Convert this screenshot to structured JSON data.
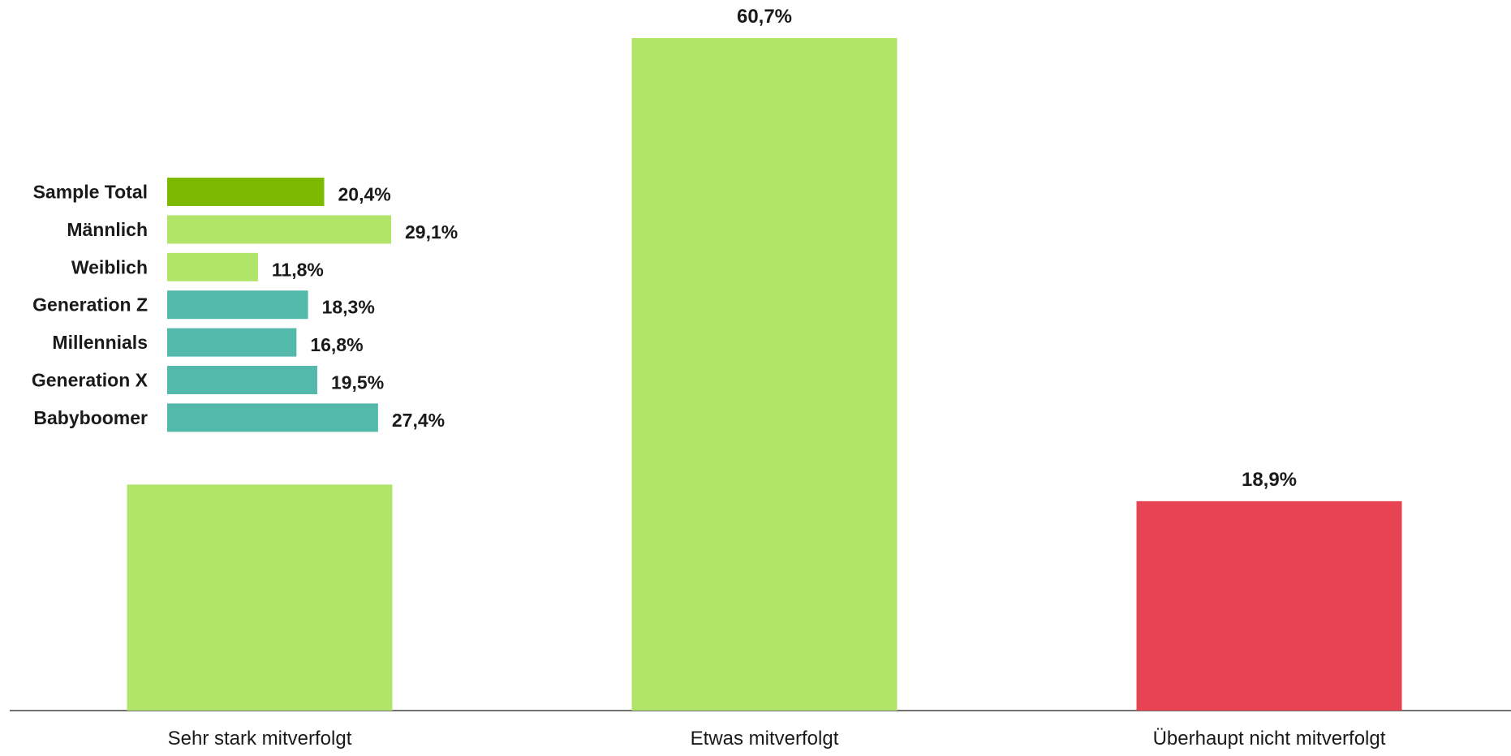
{
  "chart_data": [
    {
      "type": "bar",
      "categories": [
        "Sehr stark mitverfolgt",
        "Etwas mitverfolgt",
        "Überhaupt nicht mitverfolgt"
      ],
      "values": [
        20.4,
        60.7,
        18.9
      ],
      "value_labels": [
        "",
        "60,7%",
        "18,9%"
      ],
      "colors": [
        "#b1e56a",
        "#b1e56a",
        "#e84353"
      ],
      "ylim": [
        0,
        62
      ],
      "grid": false,
      "legend": "none"
    },
    {
      "type": "bar",
      "orientation": "horizontal",
      "categories": [
        "Sample Total",
        "Männlich",
        "Weiblich",
        "Generation Z",
        "Millennials",
        "Generation X",
        "Babyboomer"
      ],
      "values": [
        20.4,
        29.1,
        11.8,
        18.3,
        16.8,
        19.5,
        27.4
      ],
      "value_labels": [
        "20,4%",
        "29,1%",
        "11,8%",
        "18,3%",
        "16,8%",
        "19,5%",
        "27,4%"
      ],
      "colors": [
        "#7db900",
        "#b1e56a",
        "#b1e56a",
        "#52b9ab",
        "#52b9ab",
        "#52b9ab",
        "#52b9ab"
      ],
      "grid": false,
      "legend": "none"
    }
  ]
}
